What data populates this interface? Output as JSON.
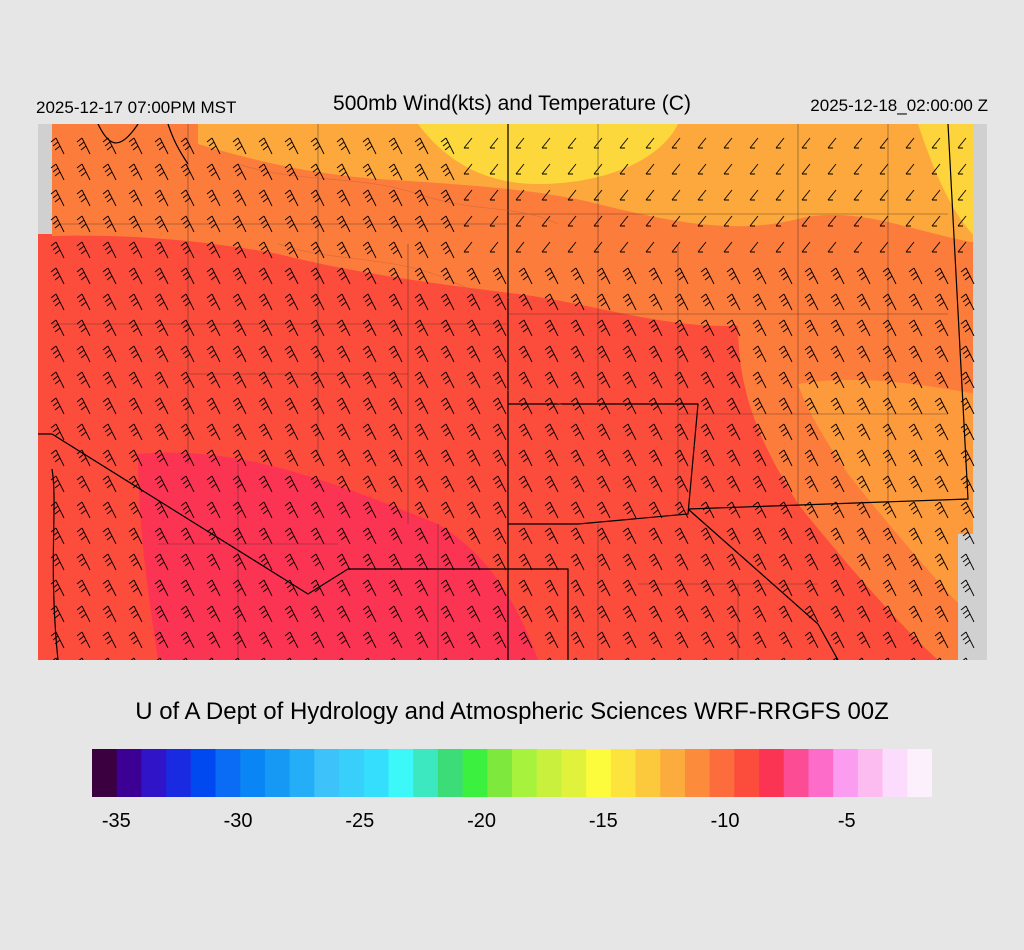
{
  "header": {
    "local_time": "2025-12-17 07:00PM MST",
    "title": "500mb Wind(kts) and Temperature (C)",
    "valid_time": "2025-12-18_02:00:00 Z"
  },
  "credit": "U of A Dept of Hydrology and Atmospheric Sciences WRF-RRGFS 00Z",
  "colorbar": {
    "colors": [
      "#3a003f",
      "#3d0094",
      "#2f14c8",
      "#1a2ae0",
      "#0048f0",
      "#0a6cf5",
      "#0a85f5",
      "#1599f5",
      "#24aef8",
      "#3dc3fa",
      "#38cffb",
      "#34defc",
      "#3cf8f8",
      "#3ce8c0",
      "#3cdc78",
      "#3cf040",
      "#7ee83c",
      "#a6f23c",
      "#c9f03c",
      "#e0f23c",
      "#fdfc3c",
      "#fde43c",
      "#fcc83c",
      "#fcac3c",
      "#fc8c3c",
      "#fc6c3c",
      "#fc4c3c",
      "#fc3454",
      "#fc4c94",
      "#fc6cc8",
      "#fc9cf0",
      "#fcbcf0",
      "#fcdcfc",
      "#fcf0fc"
    ],
    "tick_labels": [
      "-35",
      "-30",
      "-25",
      "-20",
      "-15",
      "-10",
      "-5"
    ],
    "tick_values": [
      -35,
      -30,
      -25,
      -20,
      -15,
      -10,
      -5
    ],
    "min": -36,
    "max": -1.5
  },
  "map": {
    "field": "500mb temperature",
    "dominant_colors": [
      "#fc4c3c",
      "#fc6c3c",
      "#fc8c3c",
      "#fcac3c",
      "#fcc83c",
      "#fde43c",
      "#fc3454"
    ]
  }
}
